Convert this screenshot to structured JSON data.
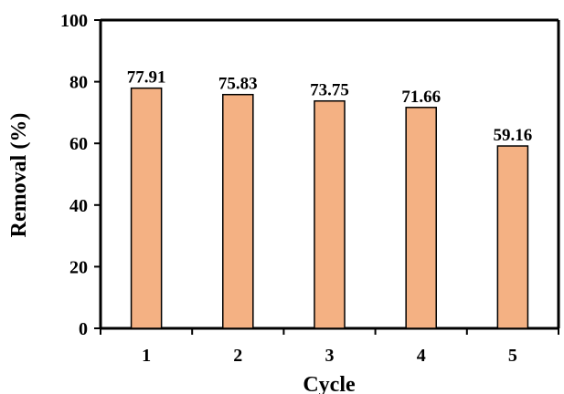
{
  "chart_data": {
    "type": "bar",
    "categories": [
      "1",
      "2",
      "3",
      "4",
      "5"
    ],
    "values": [
      77.91,
      75.83,
      73.75,
      71.66,
      59.16
    ],
    "data_labels": [
      "77.91",
      "75.83",
      "73.75",
      "71.66",
      "59.16"
    ],
    "title": "",
    "xlabel": "Cycle",
    "ylabel": "Removal (%)",
    "ylim": [
      0,
      100
    ],
    "yticks": [
      "0",
      "20",
      "40",
      "60",
      "80",
      "100"
    ],
    "grid": false,
    "legend": "none",
    "colors": {
      "bar_fill": "#F4B183",
      "bar_stroke": "#000000",
      "axis": "#000000"
    }
  }
}
